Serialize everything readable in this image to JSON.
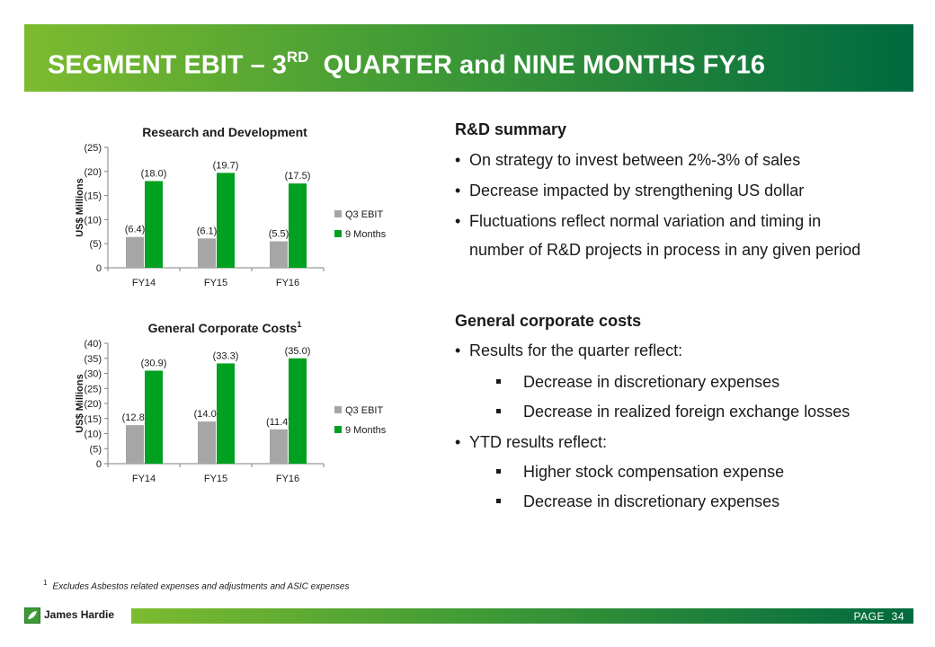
{
  "header": {
    "title_prefix": "SEGMENT EBIT – 3",
    "title_sup": "RD",
    "title_suffix": "  QUARTER and NINE MONTHS FY16"
  },
  "chart_data": [
    {
      "type": "bar",
      "title": "Research and Development",
      "title_sup": "",
      "ylabel": "US$ Millions",
      "categories": [
        "FY14",
        "FY15",
        "FY16"
      ],
      "series": [
        {
          "name": "Q3 EBIT",
          "values": [
            6.4,
            6.1,
            5.5
          ],
          "labels": [
            "(6.4)",
            "(6.1)",
            "(5.5)"
          ],
          "color": "#a6a6a6"
        },
        {
          "name": "9 Months",
          "values": [
            18.0,
            19.7,
            17.5
          ],
          "labels": [
            "(18.0)",
            "(19.7)",
            "(17.5)"
          ],
          "color": "#00a020"
        }
      ],
      "ylim": [
        0,
        25
      ],
      "yticks": [
        0,
        5,
        10,
        15,
        20,
        25
      ],
      "ytick_labels": [
        "0",
        "(5)",
        "(10)",
        "(15)",
        "(20)",
        "(25)"
      ],
      "legend": "right",
      "grid": false
    },
    {
      "type": "bar",
      "title": "General Corporate Costs",
      "title_sup": "1",
      "ylabel": "US$ Millions",
      "categories": [
        "FY14",
        "FY15",
        "FY16"
      ],
      "series": [
        {
          "name": "Q3 EBIT",
          "values": [
            12.8,
            14.0,
            11.4
          ],
          "labels": [
            "(12.8)",
            "(14.0)",
            "(11.4)"
          ],
          "color": "#a6a6a6"
        },
        {
          "name": "9 Months",
          "values": [
            30.9,
            33.3,
            35.0
          ],
          "labels": [
            "(30.9)",
            "(33.3)",
            "(35.0)"
          ],
          "color": "#00a020"
        }
      ],
      "ylim": [
        0,
        40
      ],
      "yticks": [
        0,
        5,
        10,
        15,
        20,
        25,
        30,
        35,
        40
      ],
      "ytick_labels": [
        "0",
        "(5)",
        "(10)",
        "(15)",
        "(20)",
        "(25)",
        "(30)",
        "(35)",
        "(40)"
      ],
      "legend": "right",
      "grid": false
    }
  ],
  "rd_summary": {
    "heading": "R&D summary",
    "bullets": [
      "On strategy to invest between 2%-3% of sales",
      "Decrease impacted by strengthening US dollar",
      "Fluctuations reflect normal variation and timing in",
      "number of R&D projects in process in any given period"
    ]
  },
  "corporate_summary": {
    "heading": "General corporate costs",
    "quarter_bullet": "Results for the quarter reflect:",
    "quarter_items": [
      "Decrease in discretionary expenses",
      "Decrease in realized foreign exchange losses"
    ],
    "ytd_bullet": "YTD results reflect:",
    "ytd_items": [
      "Higher stock compensation expense",
      "Decrease in discretionary expenses"
    ]
  },
  "footnote": {
    "marker": "1",
    "text": "Excludes Asbestos related expenses and adjustments and ASIC expenses"
  },
  "footer": {
    "logo_text": "James Hardie",
    "page_label": "PAGE  34"
  },
  "bullet_char": "•"
}
